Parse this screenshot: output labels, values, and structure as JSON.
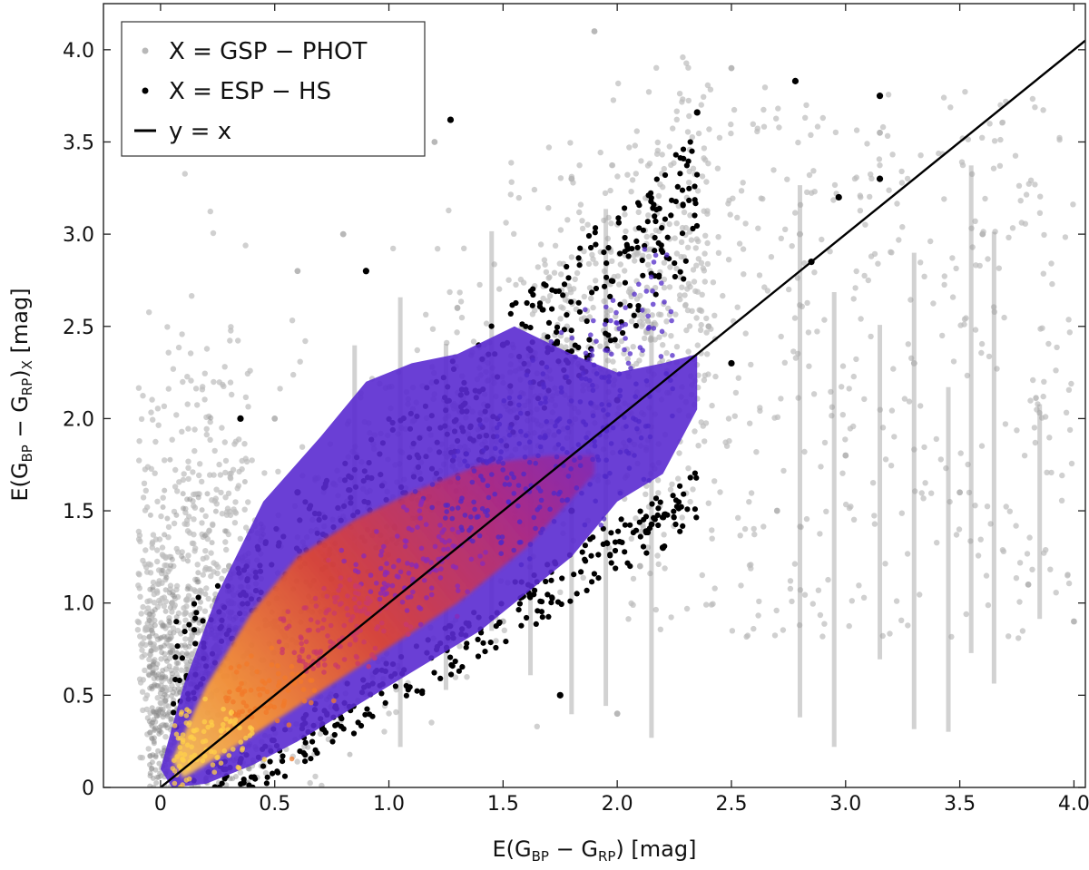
{
  "chart_data": {
    "type": "scatter",
    "xlabel": "E(G BP − GRP) [mag]",
    "xlabel_parts": {
      "pre": "E(G",
      "sub1": "BP",
      "mid": " − G",
      "sub2": "RP",
      "post": ") [mag]"
    },
    "ylabel_parts": {
      "pre": "E(G",
      "sub1": "BP",
      "mid": " − G",
      "sub2": "RP",
      "post": ")",
      "sub3": "X",
      "post2": " [mag]"
    },
    "xlim": [
      -0.25,
      4.05
    ],
    "ylim": [
      0,
      4.25
    ],
    "x_ticks": [
      0,
      0.5,
      1.0,
      1.5,
      2.0,
      2.5,
      3.0,
      3.5,
      4.0
    ],
    "x_tick_labels": [
      "0",
      "0.5",
      "1.0",
      "1.5",
      "2.0",
      "2.5",
      "3.0",
      "3.5",
      "4.0"
    ],
    "y_ticks": [
      0,
      0.5,
      1.0,
      1.5,
      2.0,
      2.5,
      3.0,
      3.5,
      4.0
    ],
    "y_tick_labels": [
      "0",
      "0.5",
      "1.0",
      "1.5",
      "2.0",
      "2.5",
      "3.0",
      "3.5",
      "4.0"
    ],
    "legend_position": "top-left",
    "series": [
      {
        "name": "X = GSP − PHOT",
        "marker": "point",
        "color": "#b8b8b8",
        "points": [
          [
            0.1,
            0.3
          ],
          [
            0.3,
            1.2
          ],
          [
            0.5,
            2.0
          ],
          [
            0.8,
            3.0
          ],
          [
            1.0,
            1.4
          ],
          [
            1.3,
            2.6
          ],
          [
            1.5,
            0.9
          ],
          [
            1.8,
            3.3
          ],
          [
            2.1,
            1.2
          ],
          [
            2.4,
            2.5
          ],
          [
            2.8,
            3.0
          ],
          [
            3.0,
            1.8
          ],
          [
            3.3,
            2.3
          ],
          [
            3.5,
            1.6
          ],
          [
            3.8,
            1.1
          ],
          [
            4.0,
            0.9
          ],
          [
            1.9,
            4.1
          ],
          [
            2.5,
            3.9
          ],
          [
            3.15,
            3.55
          ],
          [
            0.05,
            1.0
          ],
          [
            0.6,
            2.8
          ],
          [
            1.2,
            3.5
          ],
          [
            2.0,
            0.4
          ],
          [
            2.7,
            1.5
          ],
          [
            3.6,
            3.0
          ]
        ]
      },
      {
        "name": "X = ESP − HS",
        "marker": "point",
        "color": "#000000",
        "points": [
          [
            0.2,
            0.2
          ],
          [
            0.35,
            2.0
          ],
          [
            0.6,
            1.6
          ],
          [
            0.9,
            2.8
          ],
          [
            1.1,
            1.2
          ],
          [
            1.27,
            3.62
          ],
          [
            1.5,
            2.4
          ],
          [
            1.8,
            1.5
          ],
          [
            2.0,
            2.1
          ],
          [
            2.2,
            1.3
          ],
          [
            2.35,
            3.66
          ],
          [
            2.78,
            3.83
          ],
          [
            2.85,
            2.85
          ],
          [
            2.97,
            3.2
          ],
          [
            3.15,
            3.75
          ],
          [
            3.15,
            3.3
          ],
          [
            1.75,
            0.5
          ],
          [
            0.5,
            0.9
          ],
          [
            2.5,
            2.3
          ]
        ]
      },
      {
        "name": "y = x",
        "marker": "line",
        "color": "#000000",
        "points": [
          [
            0,
            0
          ],
          [
            4.05,
            4.05
          ]
        ]
      }
    ]
  }
}
